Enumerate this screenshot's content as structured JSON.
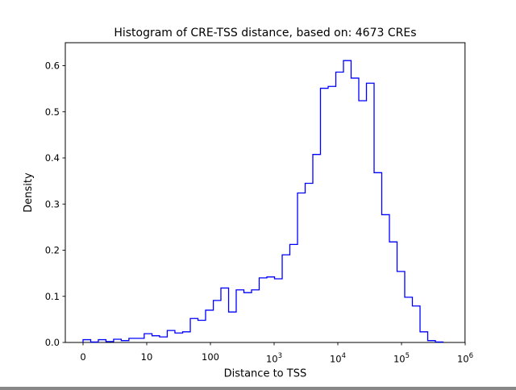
{
  "figure": {
    "background": "#ffffff",
    "axis_color": "#000000"
  },
  "chart_data": {
    "type": "bar",
    "subtype": "histogram-step-outline",
    "title": "Histogram of CRE-TSS distance, based on: 4673 CREs",
    "xlabel": "Distance to TSS",
    "ylabel": "Density",
    "line_color": "#0000ff",
    "grid": false,
    "legend": "none",
    "xscale": "symlog",
    "xscale_linthresh": 10,
    "xlim": [
      -2.8,
      1000000
    ],
    "ylim": [
      0,
      0.65
    ],
    "x_ticks": [
      {
        "value": 0,
        "base": "0",
        "exp": null
      },
      {
        "value": 10,
        "base": "10",
        "exp": null
      },
      {
        "value": 100,
        "base": "100",
        "exp": null
      },
      {
        "value": 1000,
        "base": "10",
        "exp": "3"
      },
      {
        "value": 10000,
        "base": "10",
        "exp": "4"
      },
      {
        "value": 100000,
        "base": "10",
        "exp": "5"
      },
      {
        "value": 1000000,
        "base": "10",
        "exp": "6"
      }
    ],
    "y_ticks": [
      {
        "value": 0.0,
        "label": "0.0"
      },
      {
        "value": 0.1,
        "label": "0.1"
      },
      {
        "value": 0.2,
        "label": "0.2"
      },
      {
        "value": 0.3,
        "label": "0.3"
      },
      {
        "value": 0.4,
        "label": "0.4"
      },
      {
        "value": 0.5,
        "label": "0.5"
      },
      {
        "value": 0.6,
        "label": "0.6"
      }
    ],
    "bin_edges": [
      0,
      1.2,
      2.4,
      3.6,
      4.8,
      6.0,
      7.2,
      8.4,
      9.6,
      12.1,
      15.9,
      21,
      27.7,
      36.6,
      48.3,
      63.7,
      83.9,
      111,
      146,
      193,
      254,
      335,
      442,
      583,
      769,
      1015,
      1339,
      1765,
      2329,
      3071,
      4051,
      5344,
      7048,
      9297,
      12262,
      16174,
      21334,
      28139,
      37116,
      48956,
      64574,
      85174,
      112346,
      148184,
      195456,
      257807,
      340050,
      448536
    ],
    "densities": [
      0.006,
      0.001,
      0.006,
      0.002,
      0.007,
      0.004,
      0.009,
      0.009,
      0.019,
      0.0145,
      0.012,
      0.026,
      0.0205,
      0.023,
      0.052,
      0.048,
      0.07,
      0.091,
      0.118,
      0.066,
      0.114,
      0.108,
      0.114,
      0.14,
      0.142,
      0.138,
      0.19,
      0.2125,
      0.324,
      0.345,
      0.4075,
      0.551,
      0.555,
      0.586,
      0.611,
      0.573,
      0.524,
      0.562,
      0.368,
      0.277,
      0.218,
      0.154,
      0.098,
      0.079,
      0.023,
      0.004,
      0.001
    ]
  }
}
